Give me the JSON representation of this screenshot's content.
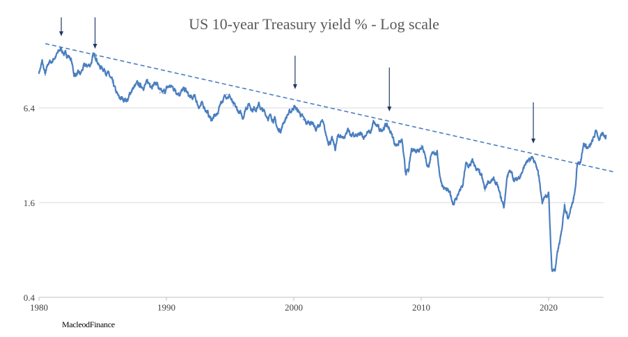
{
  "chart_data": {
    "type": "line",
    "title": "US 10-year Treasury yield % - Log scale",
    "xlabel": "",
    "ylabel": "",
    "yscale": "log4",
    "ylim": [
      0.4,
      25.6
    ],
    "xlim": [
      1980,
      2024.3
    ],
    "y_ticks": [
      "0.4",
      "1.6",
      "6.4"
    ],
    "y_tick_values": [
      0.4,
      1.6,
      6.4
    ],
    "x_ticks": [
      "1980",
      "1990",
      "2000",
      "2010",
      "2020"
    ],
    "x_tick_values": [
      1980,
      1990,
      2000,
      2010,
      2020
    ],
    "grid": "horizontal",
    "series": [
      {
        "name": "US 10-year Treasury yield",
        "color": "#4a7ebf",
        "x_start": 1980,
        "x_step": 0.25,
        "values": [
          10.8,
          12.5,
          10.3,
          12.4,
          12.6,
          13.5,
          14.3,
          15.3,
          14.0,
          13.9,
          13.2,
          10.5,
          10.5,
          10.4,
          11.6,
          11.8,
          12.0,
          13.5,
          13.6,
          11.7,
          11.5,
          11.0,
          10.3,
          9.3,
          8.2,
          7.4,
          7.3,
          7.3,
          7.2,
          8.3,
          8.7,
          9.0,
          8.8,
          8.9,
          9.2,
          9.1,
          9.1,
          9.3,
          8.0,
          7.9,
          8.4,
          8.8,
          8.6,
          8.3,
          8.0,
          8.2,
          8.3,
          7.6,
          7.3,
          7.5,
          6.6,
          6.7,
          6.5,
          5.9,
          5.4,
          5.6,
          5.8,
          7.0,
          7.3,
          7.8,
          7.6,
          6.6,
          6.3,
          5.9,
          5.6,
          6.5,
          6.8,
          6.3,
          6.4,
          6.7,
          6.2,
          5.9,
          5.6,
          5.6,
          5.4,
          4.6,
          4.7,
          5.3,
          5.8,
          6.0,
          6.6,
          6.2,
          5.9,
          5.4,
          5.1,
          5.2,
          5.2,
          4.6,
          5.0,
          5.2,
          4.3,
          3.9,
          4.0,
          3.5,
          4.3,
          4.2,
          4.2,
          4.7,
          4.3,
          4.2,
          4.2,
          4.3,
          4.2,
          4.5,
          4.4,
          5.1,
          4.9,
          4.6,
          4.8,
          5.0,
          4.7,
          4.2,
          3.7,
          3.9,
          3.9,
          2.5,
          2.5,
          3.5,
          3.5,
          3.5,
          3.7,
          3.4,
          2.7,
          3.0,
          3.4,
          3.3,
          2.3,
          2.0,
          1.9,
          1.8,
          1.6,
          1.7,
          1.9,
          2.0,
          2.8,
          2.7,
          2.9,
          2.7,
          2.5,
          2.3,
          1.9,
          2.2,
          2.2,
          2.2,
          2.0,
          1.7,
          1.5,
          2.4,
          2.5,
          2.3,
          2.2,
          2.4,
          2.6,
          2.9,
          2.9,
          3.1,
          2.7,
          2.3,
          1.6,
          1.8,
          1.8,
          0.6,
          0.6,
          0.8,
          1.0,
          1.6,
          1.3,
          1.5,
          1.7,
          2.8,
          3.0,
          3.8,
          3.6,
          3.6,
          4.0,
          4.6,
          4.0,
          4.3,
          4.3
        ]
      },
      {
        "name": "Trend line",
        "style": "dashed",
        "color": "#4a7ebf",
        "x": [
          1980.5,
          2025.2
        ],
        "values": [
          16.4,
          2.5
        ]
      }
    ],
    "annotations": [
      {
        "type": "arrow",
        "year": 1981.75,
        "color": "#1f3864"
      },
      {
        "type": "arrow",
        "year": 1984.4,
        "color": "#1f3864"
      },
      {
        "type": "arrow",
        "year": 2000.1,
        "color": "#1f3864"
      },
      {
        "type": "arrow",
        "year": 2007.5,
        "color": "#1f3864"
      },
      {
        "type": "arrow",
        "year": 2018.8,
        "color": "#1f3864"
      }
    ]
  },
  "footer": {
    "credit": "MacleodFinance"
  }
}
